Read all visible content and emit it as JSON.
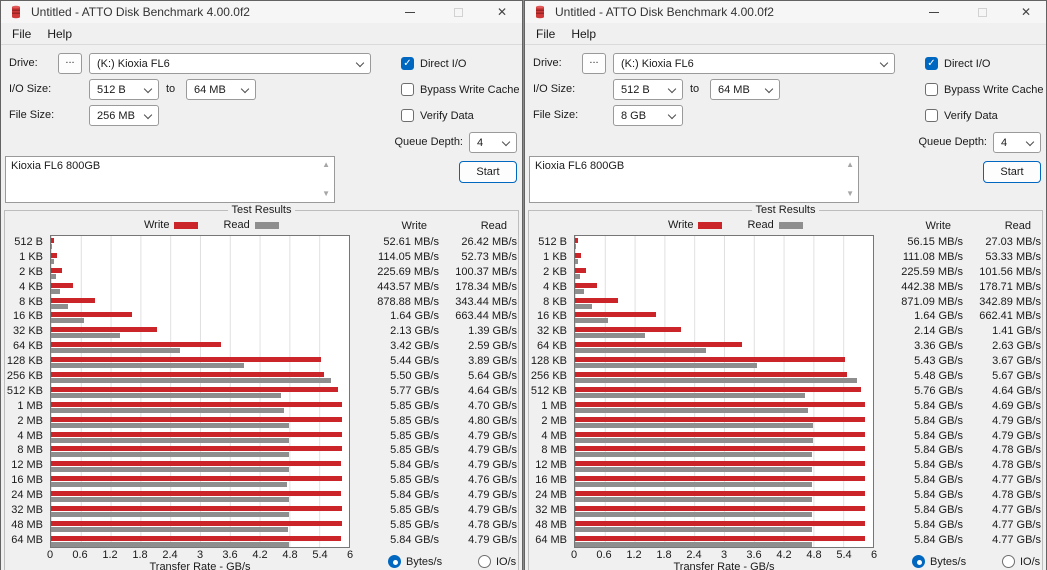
{
  "colors": {
    "write_red": "#cb2429",
    "read_gray": "#8e8e8e",
    "accent_blue": "#0067c0"
  },
  "windows": [
    {
      "titlebar": {
        "title": "Untitled - ATTO Disk Benchmark 4.00.0f2",
        "icon": "red-disk-stack-icon"
      },
      "menu": {
        "file": "File",
        "help": "Help"
      },
      "controls": {
        "drive_label": "Drive:",
        "browse_label": "...",
        "drive_value": "(K:) Kioxia FL6",
        "io_size_label": "I/O Size:",
        "io_from": "512 B",
        "to_label": "to",
        "io_to": "64 MB",
        "file_size_label": "File Size:",
        "file_size": "256 MB",
        "direct_io_label": "Direct I/O",
        "direct_io_checked": true,
        "bypass_label": "Bypass Write Cache",
        "bypass_checked": false,
        "verify_label": "Verify Data",
        "verify_checked": false,
        "queue_label": "Queue Depth:",
        "queue_value": "4",
        "description": "Kioxia FL6 800GB",
        "start_label": "Start"
      },
      "results": {
        "group_label": "Test Results",
        "legend_write": "Write",
        "legend_read": "Read",
        "col_write": "Write",
        "col_read": "Read",
        "x_label": "Transfer Rate - GB/s",
        "x_ticks": [
          "0",
          "0.6",
          "1.2",
          "1.8",
          "2.4",
          "3",
          "3.6",
          "4.2",
          "4.8",
          "5.4",
          "6"
        ],
        "x_max_gbps": 6,
        "radio_bytes": "Bytes/s",
        "radio_io": "IO/s",
        "radio_selected": "Bytes/s",
        "rows": [
          {
            "size": "512 B",
            "write": "52.61 MB/s",
            "read": "26.42 MB/s",
            "write_gbps": 0.0526,
            "read_gbps": 0.0264
          },
          {
            "size": "1 KB",
            "write": "114.05 MB/s",
            "read": "52.73 MB/s",
            "write_gbps": 0.1141,
            "read_gbps": 0.0527
          },
          {
            "size": "2 KB",
            "write": "225.69 MB/s",
            "read": "100.37 MB/s",
            "write_gbps": 0.2257,
            "read_gbps": 0.1004
          },
          {
            "size": "4 KB",
            "write": "443.57 MB/s",
            "read": "178.34 MB/s",
            "write_gbps": 0.4436,
            "read_gbps": 0.1783
          },
          {
            "size": "8 KB",
            "write": "878.88 MB/s",
            "read": "343.44 MB/s",
            "write_gbps": 0.8789,
            "read_gbps": 0.3434
          },
          {
            "size": "16 KB",
            "write": "1.64 GB/s",
            "read": "663.44 MB/s",
            "write_gbps": 1.64,
            "read_gbps": 0.6634
          },
          {
            "size": "32 KB",
            "write": "2.13 GB/s",
            "read": "1.39 GB/s",
            "write_gbps": 2.13,
            "read_gbps": 1.39
          },
          {
            "size": "64 KB",
            "write": "3.42 GB/s",
            "read": "2.59 GB/s",
            "write_gbps": 3.42,
            "read_gbps": 2.59
          },
          {
            "size": "128 KB",
            "write": "5.44 GB/s",
            "read": "3.89 GB/s",
            "write_gbps": 5.44,
            "read_gbps": 3.89
          },
          {
            "size": "256 KB",
            "write": "5.50 GB/s",
            "read": "5.64 GB/s",
            "write_gbps": 5.5,
            "read_gbps": 5.64
          },
          {
            "size": "512 KB",
            "write": "5.77 GB/s",
            "read": "4.64 GB/s",
            "write_gbps": 5.77,
            "read_gbps": 4.64
          },
          {
            "size": "1 MB",
            "write": "5.85 GB/s",
            "read": "4.70 GB/s",
            "write_gbps": 5.85,
            "read_gbps": 4.7
          },
          {
            "size": "2 MB",
            "write": "5.85 GB/s",
            "read": "4.80 GB/s",
            "write_gbps": 5.85,
            "read_gbps": 4.8
          },
          {
            "size": "4 MB",
            "write": "5.85 GB/s",
            "read": "4.79 GB/s",
            "write_gbps": 5.85,
            "read_gbps": 4.79
          },
          {
            "size": "8 MB",
            "write": "5.85 GB/s",
            "read": "4.79 GB/s",
            "write_gbps": 5.85,
            "read_gbps": 4.79
          },
          {
            "size": "12 MB",
            "write": "5.84 GB/s",
            "read": "4.79 GB/s",
            "write_gbps": 5.84,
            "read_gbps": 4.79
          },
          {
            "size": "16 MB",
            "write": "5.85 GB/s",
            "read": "4.76 GB/s",
            "write_gbps": 5.85,
            "read_gbps": 4.76
          },
          {
            "size": "24 MB",
            "write": "5.84 GB/s",
            "read": "4.79 GB/s",
            "write_gbps": 5.84,
            "read_gbps": 4.79
          },
          {
            "size": "32 MB",
            "write": "5.85 GB/s",
            "read": "4.79 GB/s",
            "write_gbps": 5.85,
            "read_gbps": 4.79
          },
          {
            "size": "48 MB",
            "write": "5.85 GB/s",
            "read": "4.78 GB/s",
            "write_gbps": 5.85,
            "read_gbps": 4.78
          },
          {
            "size": "64 MB",
            "write": "5.84 GB/s",
            "read": "4.79 GB/s",
            "write_gbps": 5.84,
            "read_gbps": 4.79
          }
        ]
      }
    },
    {
      "titlebar": {
        "title": "Untitled - ATTO Disk Benchmark 4.00.0f2",
        "icon": "red-disk-stack-icon"
      },
      "menu": {
        "file": "File",
        "help": "Help"
      },
      "controls": {
        "drive_label": "Drive:",
        "browse_label": "...",
        "drive_value": "(K:) Kioxia FL6",
        "io_size_label": "I/O Size:",
        "io_from": "512 B",
        "to_label": "to",
        "io_to": "64 MB",
        "file_size_label": "File Size:",
        "file_size": "8 GB",
        "direct_io_label": "Direct I/O",
        "direct_io_checked": true,
        "bypass_label": "Bypass Write Cache",
        "bypass_checked": false,
        "verify_label": "Verify Data",
        "verify_checked": false,
        "queue_label": "Queue Depth:",
        "queue_value": "4",
        "description": "Kioxia FL6 800GB",
        "start_label": "Start"
      },
      "results": {
        "group_label": "Test Results",
        "legend_write": "Write",
        "legend_read": "Read",
        "col_write": "Write",
        "col_read": "Read",
        "x_label": "Transfer Rate - GB/s",
        "x_ticks": [
          "0",
          "0.6",
          "1.2",
          "1.8",
          "2.4",
          "3",
          "3.6",
          "4.2",
          "4.8",
          "5.4",
          "6"
        ],
        "x_max_gbps": 6,
        "radio_bytes": "Bytes/s",
        "radio_io": "IO/s",
        "radio_selected": "Bytes/s",
        "rows": [
          {
            "size": "512 B",
            "write": "56.15 MB/s",
            "read": "27.03 MB/s",
            "write_gbps": 0.0562,
            "read_gbps": 0.027
          },
          {
            "size": "1 KB",
            "write": "111.08 MB/s",
            "read": "53.33 MB/s",
            "write_gbps": 0.1111,
            "read_gbps": 0.0533
          },
          {
            "size": "2 KB",
            "write": "225.59 MB/s",
            "read": "101.56 MB/s",
            "write_gbps": 0.2256,
            "read_gbps": 0.1016
          },
          {
            "size": "4 KB",
            "write": "442.38 MB/s",
            "read": "178.71 MB/s",
            "write_gbps": 0.4424,
            "read_gbps": 0.1787
          },
          {
            "size": "8 KB",
            "write": "871.09 MB/s",
            "read": "342.89 MB/s",
            "write_gbps": 0.8711,
            "read_gbps": 0.3429
          },
          {
            "size": "16 KB",
            "write": "1.64 GB/s",
            "read": "662.41 MB/s",
            "write_gbps": 1.64,
            "read_gbps": 0.6624
          },
          {
            "size": "32 KB",
            "write": "2.14 GB/s",
            "read": "1.41 GB/s",
            "write_gbps": 2.14,
            "read_gbps": 1.41
          },
          {
            "size": "64 KB",
            "write": "3.36 GB/s",
            "read": "2.63 GB/s",
            "write_gbps": 3.36,
            "read_gbps": 2.63
          },
          {
            "size": "128 KB",
            "write": "5.43 GB/s",
            "read": "3.67 GB/s",
            "write_gbps": 5.43,
            "read_gbps": 3.67
          },
          {
            "size": "256 KB",
            "write": "5.48 GB/s",
            "read": "5.67 GB/s",
            "write_gbps": 5.48,
            "read_gbps": 5.67
          },
          {
            "size": "512 KB",
            "write": "5.76 GB/s",
            "read": "4.64 GB/s",
            "write_gbps": 5.76,
            "read_gbps": 4.64
          },
          {
            "size": "1 MB",
            "write": "5.84 GB/s",
            "read": "4.69 GB/s",
            "write_gbps": 5.84,
            "read_gbps": 4.69
          },
          {
            "size": "2 MB",
            "write": "5.84 GB/s",
            "read": "4.79 GB/s",
            "write_gbps": 5.84,
            "read_gbps": 4.79
          },
          {
            "size": "4 MB",
            "write": "5.84 GB/s",
            "read": "4.79 GB/s",
            "write_gbps": 5.84,
            "read_gbps": 4.79
          },
          {
            "size": "8 MB",
            "write": "5.84 GB/s",
            "read": "4.78 GB/s",
            "write_gbps": 5.84,
            "read_gbps": 4.78
          },
          {
            "size": "12 MB",
            "write": "5.84 GB/s",
            "read": "4.78 GB/s",
            "write_gbps": 5.84,
            "read_gbps": 4.78
          },
          {
            "size": "16 MB",
            "write": "5.84 GB/s",
            "read": "4.77 GB/s",
            "write_gbps": 5.84,
            "read_gbps": 4.77
          },
          {
            "size": "24 MB",
            "write": "5.84 GB/s",
            "read": "4.78 GB/s",
            "write_gbps": 5.84,
            "read_gbps": 4.78
          },
          {
            "size": "32 MB",
            "write": "5.84 GB/s",
            "read": "4.77 GB/s",
            "write_gbps": 5.84,
            "read_gbps": 4.77
          },
          {
            "size": "48 MB",
            "write": "5.84 GB/s",
            "read": "4.77 GB/s",
            "write_gbps": 5.84,
            "read_gbps": 4.77
          },
          {
            "size": "64 MB",
            "write": "5.84 GB/s",
            "read": "4.77 GB/s",
            "write_gbps": 5.84,
            "read_gbps": 4.77
          }
        ]
      }
    }
  ]
}
